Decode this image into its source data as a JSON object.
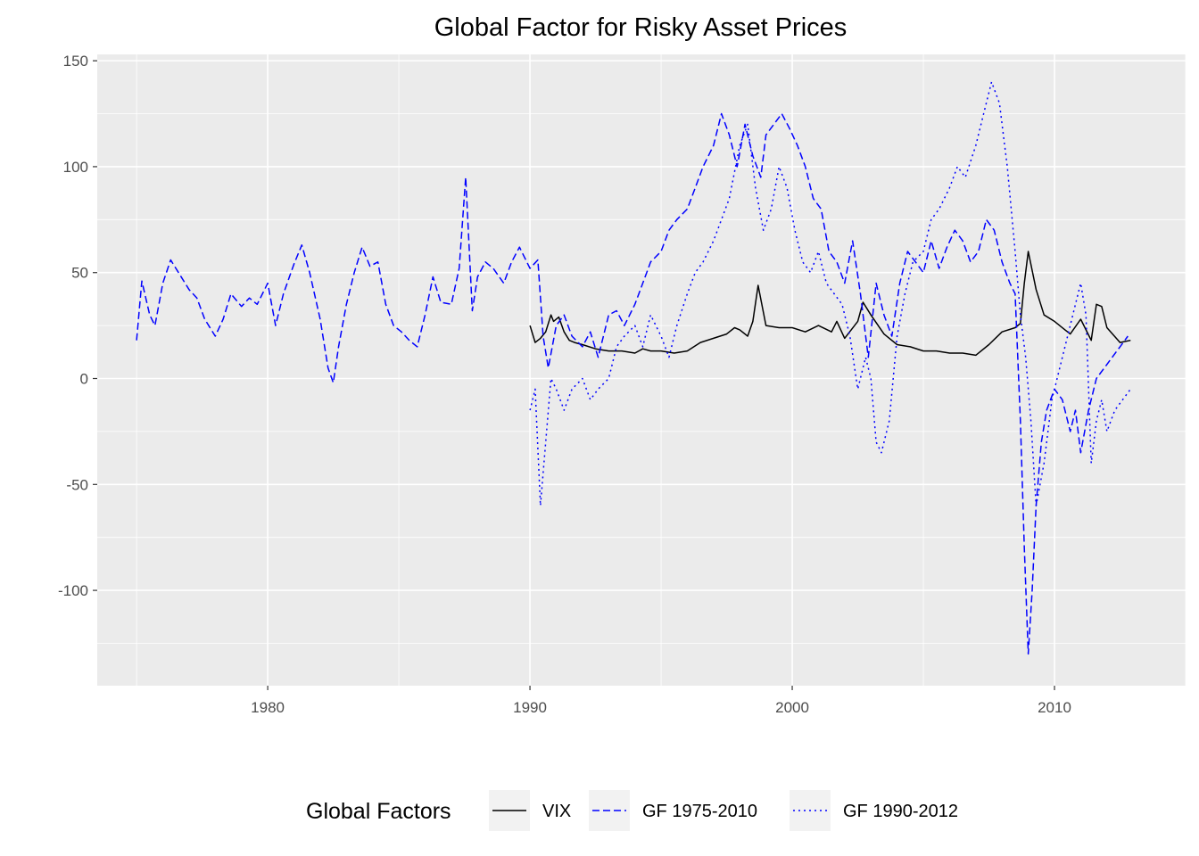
{
  "chart_data": {
    "type": "line",
    "title": "Global Factor for Risky Asset Prices",
    "xlabel": "",
    "ylabel": "",
    "xlim": [
      1973.5,
      2015
    ],
    "ylim": [
      -145,
      153
    ],
    "x_ticks": [
      1980,
      1990,
      2000,
      2010
    ],
    "x_tick_labels": [
      "1980",
      "1990",
      "2000",
      "2010"
    ],
    "y_ticks": [
      150,
      100,
      50,
      0,
      -50,
      -100
    ],
    "y_tick_labels": [
      "150",
      "100",
      "50",
      "0",
      "-50",
      "-100"
    ],
    "grid": true,
    "legend": {
      "title": "Global Factors",
      "position": "bottom",
      "items": [
        "VIX",
        "GF 1975-2010",
        "GF 1990-2012"
      ]
    },
    "series": [
      {
        "name": "VIX",
        "color": "#000000",
        "dash": "solid",
        "x": [
          1990.0,
          1990.2,
          1990.4,
          1990.6,
          1990.8,
          1990.9,
          1991.1,
          1991.3,
          1991.5,
          1991.7,
          1992.0,
          1992.5,
          1993.0,
          1993.5,
          1994.0,
          1994.3,
          1994.6,
          1995.0,
          1995.5,
          1996.0,
          1996.5,
          1997.0,
          1997.5,
          1997.8,
          1998.0,
          1998.3,
          1998.5,
          1998.7,
          1999.0,
          1999.5,
          2000.0,
          2000.5,
          2001.0,
          2001.5,
          2001.7,
          2002.0,
          2002.5,
          2002.7,
          2003.0,
          2003.5,
          2004.0,
          2004.5,
          2005.0,
          2005.5,
          2006.0,
          2006.5,
          2007.0,
          2007.5,
          2008.0,
          2008.5,
          2008.7,
          2008.85,
          2009.0,
          2009.3,
          2009.6,
          2010.0,
          2010.4,
          2010.6,
          2011.0,
          2011.4,
          2011.6,
          2011.8,
          2012.0,
          2012.5,
          2012.9
        ],
        "values": [
          25,
          17,
          19,
          22,
          30,
          27,
          29,
          22,
          18,
          17,
          16,
          14,
          13,
          13,
          12,
          14,
          13,
          13,
          12,
          13,
          17,
          19,
          21,
          24,
          23,
          20,
          27,
          44,
          25,
          24,
          24,
          22,
          25,
          22,
          27,
          19,
          27,
          36,
          30,
          21,
          16,
          15,
          13,
          13,
          12,
          12,
          11,
          16,
          22,
          24,
          26,
          45,
          60,
          42,
          30,
          27,
          23,
          21,
          28,
          18,
          35,
          34,
          24,
          17,
          18
        ]
      },
      {
        "name": "GF 1975-2010",
        "color": "#0000ff",
        "dash": "dashed",
        "x": [
          1975.0,
          1975.2,
          1975.5,
          1975.7,
          1976.0,
          1976.3,
          1976.6,
          1977.0,
          1977.3,
          1977.6,
          1978.0,
          1978.3,
          1978.6,
          1979.0,
          1979.3,
          1979.6,
          1980.0,
          1980.3,
          1980.6,
          1981.0,
          1981.3,
          1981.6,
          1982.0,
          1982.3,
          1982.5,
          1982.7,
          1983.0,
          1983.3,
          1983.6,
          1983.9,
          1984.2,
          1984.5,
          1984.8,
          1985.1,
          1985.4,
          1985.7,
          1986.0,
          1986.3,
          1986.6,
          1987.0,
          1987.3,
          1987.55,
          1987.8,
          1988.0,
          1988.3,
          1988.6,
          1989.0,
          1989.3,
          1989.6,
          1990.0,
          1990.3,
          1990.5,
          1990.7,
          1991.0,
          1991.3,
          1991.6,
          1992.0,
          1992.3,
          1992.6,
          1993.0,
          1993.3,
          1993.6,
          1994.0,
          1994.3,
          1994.6,
          1995.0,
          1995.3,
          1995.6,
          1996.0,
          1996.3,
          1996.6,
          1997.0,
          1997.3,
          1997.6,
          1997.9,
          1998.2,
          1998.5,
          1998.8,
          1999.0,
          1999.3,
          1999.6,
          1999.9,
          2000.2,
          2000.5,
          2000.8,
          2001.1,
          2001.4,
          2001.7,
          2002.0,
          2002.3,
          2002.6,
          2002.9,
          2003.2,
          2003.5,
          2003.8,
          2004.1,
          2004.4,
          2004.7,
          2005.0,
          2005.3,
          2005.6,
          2005.9,
          2006.2,
          2006.5,
          2006.8,
          2007.1,
          2007.4,
          2007.7,
          2008.0,
          2008.3,
          2008.5,
          2008.7,
          2008.85,
          2009.0,
          2009.15,
          2009.3,
          2009.5,
          2009.7,
          2010.0,
          2010.3,
          2010.6,
          2010.8,
          2011.0,
          2011.3,
          2011.6,
          2011.9,
          2012.2,
          2012.5,
          2012.8
        ],
        "values": [
          18,
          46,
          30,
          25,
          45,
          56,
          50,
          42,
          38,
          28,
          20,
          28,
          40,
          34,
          38,
          35,
          45,
          25,
          40,
          54,
          63,
          50,
          28,
          5,
          -2,
          15,
          35,
          50,
          62,
          53,
          55,
          35,
          25,
          22,
          18,
          15,
          30,
          48,
          36,
          35,
          52,
          95,
          32,
          48,
          55,
          52,
          45,
          55,
          62,
          52,
          56,
          20,
          5,
          25,
          30,
          20,
          15,
          22,
          10,
          30,
          32,
          25,
          35,
          45,
          55,
          60,
          70,
          75,
          80,
          90,
          100,
          110,
          125,
          115,
          100,
          120,
          105,
          95,
          115,
          120,
          125,
          118,
          110,
          100,
          85,
          80,
          60,
          55,
          45,
          65,
          40,
          10,
          45,
          30,
          20,
          45,
          60,
          55,
          50,
          65,
          52,
          62,
          70,
          65,
          55,
          60,
          75,
          70,
          55,
          45,
          40,
          -20,
          -80,
          -130,
          -100,
          -60,
          -30,
          -15,
          -5,
          -10,
          -25,
          -15,
          -35,
          -15,
          0,
          5,
          10,
          15,
          20
        ]
      },
      {
        "name": "GF 1990-2012",
        "color": "#0000ff",
        "dash": "dotted",
        "x": [
          1990.0,
          1990.2,
          1990.4,
          1990.6,
          1990.8,
          1991.0,
          1991.3,
          1991.6,
          1992.0,
          1992.3,
          1992.6,
          1993.0,
          1993.3,
          1993.6,
          1994.0,
          1994.3,
          1994.6,
          1995.0,
          1995.3,
          1995.6,
          1996.0,
          1996.3,
          1996.6,
          1997.0,
          1997.3,
          1997.6,
          1998.0,
          1998.3,
          1998.6,
          1998.9,
          1999.2,
          1999.5,
          1999.8,
          2000.1,
          2000.4,
          2000.7,
          2001.0,
          2001.3,
          2001.6,
          2001.9,
          2002.2,
          2002.5,
          2002.8,
          2003.0,
          2003.2,
          2003.4,
          2003.7,
          2004.0,
          2004.3,
          2004.6,
          2005.0,
          2005.3,
          2005.6,
          2006.0,
          2006.3,
          2006.6,
          2007.0,
          2007.3,
          2007.6,
          2007.9,
          2008.2,
          2008.5,
          2008.7,
          2008.9,
          2009.1,
          2009.3,
          2009.6,
          2009.9,
          2010.2,
          2010.5,
          2010.8,
          2011.0,
          2011.2,
          2011.4,
          2011.6,
          2011.8,
          2012.0,
          2012.3,
          2012.6,
          2012.9
        ],
        "values": [
          -15,
          -5,
          -60,
          -30,
          0,
          -5,
          -15,
          -5,
          0,
          -10,
          -5,
          0,
          15,
          20,
          25,
          15,
          30,
          20,
          10,
          25,
          40,
          50,
          55,
          65,
          75,
          85,
          110,
          120,
          90,
          70,
          80,
          100,
          90,
          70,
          55,
          50,
          60,
          45,
          40,
          35,
          20,
          -5,
          10,
          0,
          -30,
          -35,
          -20,
          20,
          40,
          55,
          60,
          75,
          80,
          90,
          100,
          95,
          110,
          125,
          140,
          130,
          100,
          60,
          30,
          10,
          -20,
          -60,
          -40,
          -10,
          5,
          20,
          35,
          45,
          30,
          -40,
          -20,
          -10,
          -25,
          -15,
          -10,
          -5
        ]
      }
    ]
  }
}
